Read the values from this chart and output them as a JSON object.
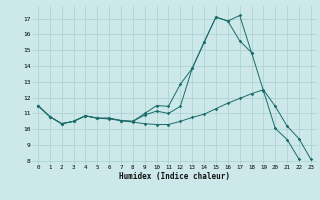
{
  "xlabel": "Humidex (Indice chaleur)",
  "bg_color": "#cce8e8",
  "line_color": "#1a6b6b",
  "grid_color": "#aacfcf",
  "xlim": [
    -0.5,
    23.5
  ],
  "ylim": [
    7.8,
    17.8
  ],
  "yticks": [
    8,
    9,
    10,
    11,
    12,
    13,
    14,
    15,
    16,
    17
  ],
  "xticks": [
    0,
    1,
    2,
    3,
    4,
    5,
    6,
    7,
    8,
    9,
    10,
    11,
    12,
    13,
    14,
    15,
    16,
    17,
    18,
    19,
    20,
    21,
    22,
    23
  ],
  "line1_x": [
    0,
    1,
    2,
    3,
    4,
    5,
    6,
    7,
    8,
    9,
    10,
    11,
    12,
    13,
    14,
    15,
    16,
    17,
    18,
    19,
    20,
    21,
    22
  ],
  "line1_y": [
    11.5,
    10.8,
    10.35,
    10.5,
    10.85,
    10.7,
    10.7,
    10.55,
    10.5,
    11.0,
    11.5,
    11.45,
    12.85,
    13.85,
    15.5,
    17.1,
    16.85,
    17.2,
    14.85,
    12.45,
    10.05,
    9.35,
    8.1
  ],
  "line2_x": [
    0,
    1,
    2,
    3,
    4,
    5,
    6,
    7,
    8,
    9,
    10,
    11,
    12,
    13,
    14,
    15,
    16,
    17,
    18
  ],
  "line2_y": [
    11.5,
    10.8,
    10.35,
    10.5,
    10.85,
    10.7,
    10.7,
    10.55,
    10.5,
    10.9,
    11.15,
    11.0,
    11.45,
    13.85,
    15.5,
    17.1,
    16.85,
    15.6,
    14.85
  ],
  "line3_x": [
    0,
    1,
    2,
    3,
    4,
    5,
    6,
    7,
    8,
    9,
    10,
    11,
    12,
    13,
    14,
    15,
    16,
    17,
    18,
    19,
    20,
    21,
    22,
    23
  ],
  "line3_y": [
    11.5,
    10.8,
    10.35,
    10.5,
    10.85,
    10.7,
    10.65,
    10.55,
    10.45,
    10.35,
    10.3,
    10.3,
    10.5,
    10.75,
    10.95,
    11.3,
    11.65,
    11.95,
    12.25,
    12.5,
    11.45,
    10.2,
    9.4,
    8.1
  ]
}
